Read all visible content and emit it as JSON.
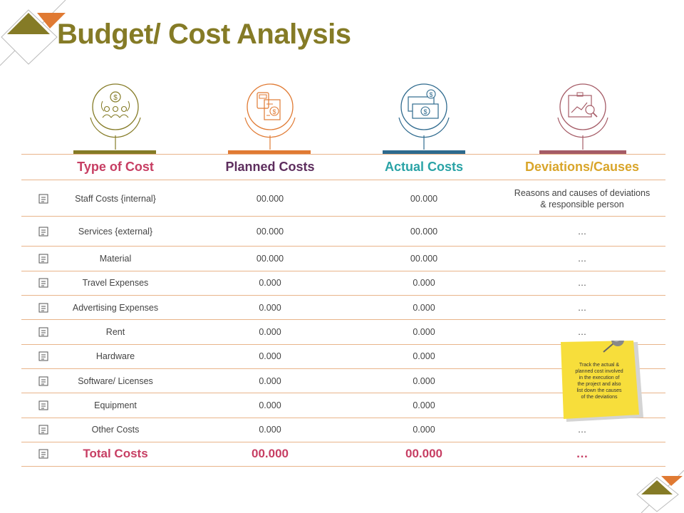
{
  "title": "Budget/ Cost Analysis",
  "colors": {
    "title": "#857b26",
    "type": "#c73e63",
    "planned": "#5e2e5e",
    "actual": "#2aa3a6",
    "deviations": "#d9a52a",
    "bar_type": "#857b26",
    "bar_planned": "#e07a33",
    "bar_actual": "#2e6a8e",
    "bar_deviations": "#a55b66",
    "divider": "#e9b48a",
    "note": "#f7de3b"
  },
  "columns": {
    "type": "Type  of Cost",
    "planned": "Planned Costs",
    "actual": "Actual Costs",
    "deviations": "Deviations/Causes"
  },
  "column_icons": [
    "money-people-icon",
    "calculator-invoice-icon",
    "money-bill-icon",
    "analysis-clipboard-icon"
  ],
  "rows": [
    {
      "type": "Staff Costs {internal}",
      "planned": "00.000",
      "actual": "00.000",
      "deviation": "Reasons and causes of deviations",
      "deviation2": "& responsible person",
      "icon": "org-chart-icon"
    },
    {
      "type": "Services {external}",
      "planned": "00.000",
      "actual": "00.000",
      "deviation": "…",
      "deviation2": "",
      "icon": "team-meeting-icon"
    },
    {
      "type": "Material",
      "planned": "00.000",
      "actual": "00.000",
      "deviation": "…",
      "deviation2": "",
      "icon": "material-icon"
    },
    {
      "type": "Travel Expenses",
      "planned": "0.000",
      "actual": "0.000",
      "deviation": "…",
      "deviation2": "",
      "icon": "building-icon"
    },
    {
      "type": "Advertising Expenses",
      "planned": "0.000",
      "actual": "0.000",
      "deviation": "…",
      "deviation2": "",
      "icon": "megaphone-icon"
    },
    {
      "type": "Rent",
      "planned": "0.000",
      "actual": "0.000",
      "deviation": "…",
      "deviation2": "",
      "icon": "house-icon"
    },
    {
      "type": "Hardware",
      "planned": "0.000",
      "actual": "0.000",
      "deviation": "",
      "deviation2": "",
      "icon": "gears-icon"
    },
    {
      "type": "Software/ Licenses",
      "planned": "0.000",
      "actual": "0.000",
      "deviation": "",
      "deviation2": "",
      "icon": "software-icon"
    },
    {
      "type": "Equipment",
      "planned": "0.000",
      "actual": "0.000",
      "deviation": "",
      "deviation2": "",
      "icon": "equipment-icon"
    },
    {
      "type": "Other Costs",
      "planned": "0.000",
      "actual": "0.000",
      "deviation": "…",
      "deviation2": "",
      "icon": "document-icon"
    }
  ],
  "total": {
    "type": "Total Costs",
    "planned": "00.000",
    "actual": "00.000",
    "deviation": "…",
    "icon": "money-bag-icon"
  },
  "note": {
    "lines": [
      "Track the actual &",
      "planned  cost involved",
      "in the execution of",
      "the project and also",
      "list down the causes",
      "of the deviations"
    ]
  }
}
